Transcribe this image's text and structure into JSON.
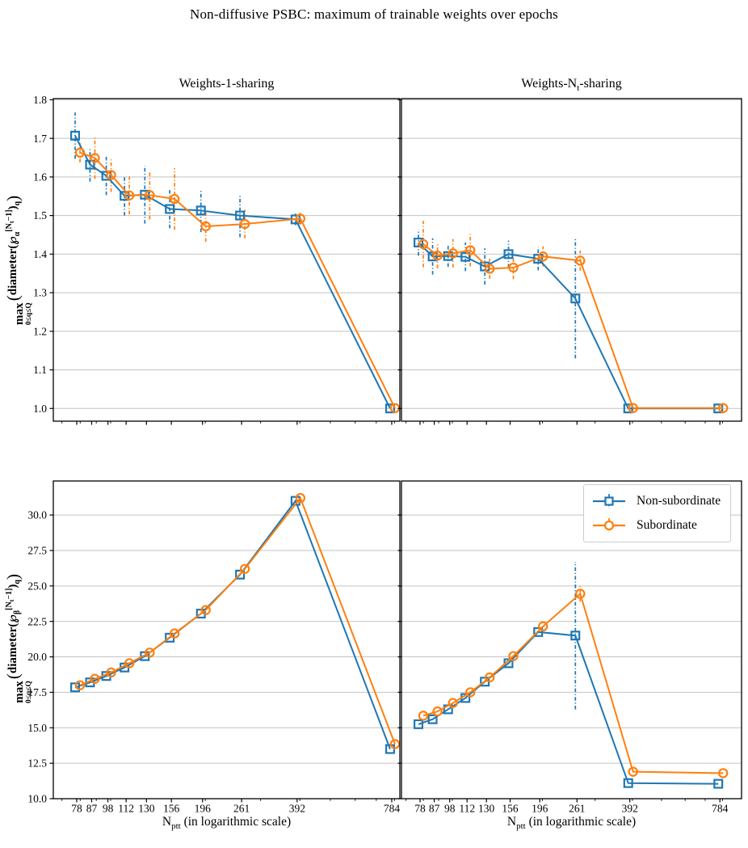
{
  "title": "Non-diffusive PSBC: maximum of trainable weights over epochs",
  "titles": {
    "left": "Weights-1-sharing",
    "right_pre": "Weights-N",
    "right_sub": "t",
    "right_post": "-sharing"
  },
  "x_axis": {
    "label_main": "N",
    "label_sub": "ptt",
    "label_rest": " (in logarithmic scale)",
    "ticks": [
      78,
      87,
      98,
      112,
      130,
      156,
      196,
      261,
      392,
      784
    ],
    "scale": "log"
  },
  "legend": {
    "items": [
      {
        "label": "Non-subordinate",
        "color": "#1f77b4",
        "marker": "square"
      },
      {
        "label": "Subordinate",
        "color": "#ff7f0e",
        "marker": "circle"
      }
    ],
    "position": "upper right of bottom-right panel"
  },
  "colors": {
    "non_subordinate": "#1f77b4",
    "subordinate": "#ff7f0e",
    "grid": "#c3c3c3",
    "spine": "#000000"
  },
  "ylabel_parts": {
    "max": "max",
    "under": "0≤q≤Q",
    "fn": "diameter",
    "script": "℘",
    "sub_top": "α",
    "sub_bottom": "β",
    "sup_pre": "[N",
    "sup_sub": "t",
    "sup_post": "−1]",
    "outer_sub": "q"
  },
  "chart_data": [
    {
      "id": "top-left",
      "type": "line",
      "title": "Weights-1-sharing",
      "ylabel": "max 0<=q<=Q ( diameter( P_alpha^[Nt-1] )_q )",
      "x": [
        78,
        87,
        98,
        112,
        130,
        156,
        196,
        261,
        392,
        784
      ],
      "series": [
        {
          "name": "Non-subordinate",
          "values": [
            1.707,
            1.632,
            1.603,
            1.551,
            1.554,
            1.517,
            1.513,
            1.5,
            1.49,
            1.0
          ],
          "err": [
            0.06,
            0.044,
            0.05,
            0.051,
            0.075,
            0.05,
            0.056,
            0.056,
            0.015,
            0.0
          ]
        },
        {
          "name": "Subordinate",
          "values": [
            1.663,
            1.649,
            1.605,
            1.552,
            1.553,
            1.543,
            1.472,
            1.478,
            1.492,
            1.001
          ],
          "err": [
            0.025,
            0.054,
            0.044,
            0.049,
            0.063,
            0.08,
            0.04,
            0.037,
            0.015,
            0.0
          ]
        }
      ],
      "ylim": [
        0.967,
        1.803
      ],
      "yticks": [
        1.0,
        1.1,
        1.2,
        1.3,
        1.4,
        1.5,
        1.6,
        1.7,
        1.8
      ],
      "grid": true,
      "show_xticklabels": false,
      "show_yticklabels": true
    },
    {
      "id": "top-right",
      "type": "line",
      "title": "Weights-Nt-sharing",
      "ylabel": "max 0<=q<=Q ( diameter( P_alpha^[Nt-1] )_q )",
      "x": [
        78,
        87,
        98,
        112,
        130,
        156,
        196,
        261,
        392,
        784
      ],
      "series": [
        {
          "name": "Non-subordinate",
          "values": [
            1.43,
            1.394,
            1.395,
            1.393,
            1.368,
            1.4,
            1.388,
            1.285,
            1.0,
            1.0
          ],
          "err": [
            0.034,
            0.047,
            0.028,
            0.037,
            0.047,
            0.035,
            0.03,
            0.155,
            0.0,
            0.0
          ]
        },
        {
          "name": "Subordinate",
          "values": [
            1.426,
            1.396,
            1.402,
            1.41,
            1.362,
            1.365,
            1.394,
            1.383,
            1.001,
            1.001
          ],
          "err": [
            0.06,
            0.033,
            0.037,
            0.042,
            0.026,
            0.03,
            0.026,
            0.026,
            0.0,
            0.0
          ]
        }
      ],
      "ylim": [
        0.967,
        1.803
      ],
      "yticks": [
        1.0,
        1.1,
        1.2,
        1.3,
        1.4,
        1.5,
        1.6,
        1.7,
        1.8
      ],
      "grid": true,
      "show_xticklabels": false,
      "show_yticklabels": false
    },
    {
      "id": "bottom-left",
      "type": "line",
      "title": "",
      "ylabel": "max 0<=q<=Q ( diameter( P_beta^[Nt-1] )_q )",
      "x": [
        78,
        87,
        98,
        112,
        130,
        156,
        196,
        261,
        392,
        784
      ],
      "series": [
        {
          "name": "Non-subordinate",
          "values": [
            17.85,
            18.2,
            18.65,
            19.25,
            20.05,
            21.35,
            23.05,
            25.8,
            31.0,
            13.5
          ],
          "err": [
            0,
            0,
            0,
            0,
            0,
            0,
            0,
            0,
            0,
            0
          ]
        },
        {
          "name": "Subordinate",
          "values": [
            18.0,
            18.45,
            18.9,
            19.55,
            20.3,
            21.65,
            23.3,
            26.2,
            31.2,
            13.85
          ],
          "err": [
            0,
            0,
            0,
            0,
            0,
            0,
            0,
            0,
            0,
            0
          ]
        }
      ],
      "ylim": [
        10.0,
        32.4
      ],
      "yticks": [
        10.0,
        12.5,
        15.0,
        17.5,
        20.0,
        22.5,
        25.0,
        27.5,
        30.0
      ],
      "grid": true,
      "show_xticklabels": true,
      "show_yticklabels": true
    },
    {
      "id": "bottom-right",
      "type": "line",
      "title": "",
      "ylabel": "max 0<=q<=Q ( diameter( P_beta^[Nt-1] )_q )",
      "x": [
        78,
        87,
        98,
        112,
        130,
        156,
        196,
        261,
        392,
        784
      ],
      "series": [
        {
          "name": "Non-subordinate",
          "values": [
            15.25,
            15.6,
            16.3,
            17.1,
            18.25,
            19.55,
            21.75,
            21.5,
            11.1,
            11.05
          ],
          "err": [
            0,
            0,
            0,
            0,
            0,
            0,
            0,
            5.2,
            0,
            0
          ]
        },
        {
          "name": "Subordinate",
          "values": [
            15.85,
            16.15,
            16.75,
            17.5,
            18.55,
            20.05,
            22.15,
            24.45,
            11.9,
            11.8
          ],
          "err": [
            0,
            0,
            0,
            0,
            0,
            0,
            0,
            0.55,
            0,
            0
          ]
        }
      ],
      "ylim": [
        10.0,
        32.4
      ],
      "yticks": [
        10.0,
        12.5,
        15.0,
        17.5,
        20.0,
        22.5,
        25.0,
        27.5,
        30.0
      ],
      "grid": true,
      "show_xticklabels": true,
      "show_yticklabels": false
    }
  ]
}
